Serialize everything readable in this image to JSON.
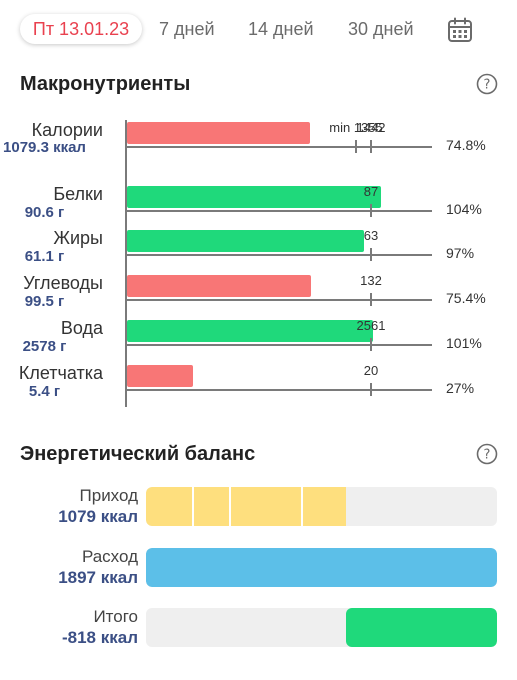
{
  "tabs": [
    {
      "label": "Пт 13.01.23",
      "active": true
    },
    {
      "label": "7 дней",
      "active": false
    },
    {
      "label": "14 дней",
      "active": false
    },
    {
      "label": "30 дней",
      "active": false
    }
  ],
  "icons": {
    "calendar": "calendar-icon",
    "help": "question-circle-icon"
  },
  "colors": {
    "accent": "#e9414f",
    "value_text": "#3b4f85",
    "bar_low": "#f87676",
    "bar_ok": "#1fd97b",
    "intake": "#fedf7e",
    "expense": "#5cbfe8",
    "total": "#1fd97b"
  },
  "macro": {
    "title": "Макронутриенты",
    "rows": [
      {
        "name": "Калории",
        "value": "1079.3 ккал",
        "percent": "74.8%",
        "status": "low",
        "actual": 1079.3,
        "target": 1442,
        "min": 1355,
        "min_label": "min 1355",
        "target_label": "1442"
      },
      {
        "name": "Белки",
        "value": "90.6 г",
        "percent": "104%",
        "status": "ok",
        "actual": 90.6,
        "target": 87,
        "target_label": "87"
      },
      {
        "name": "Жиры",
        "value": "61.1 г",
        "percent": "97%",
        "status": "ok",
        "actual": 61.1,
        "target": 63,
        "target_label": "63"
      },
      {
        "name": "Углеводы",
        "value": "99.5 г",
        "percent": "75.4%",
        "status": "low",
        "actual": 99.5,
        "target": 132,
        "target_label": "132"
      },
      {
        "name": "Вода",
        "value": "2578 г",
        "percent": "101%",
        "status": "ok",
        "actual": 2578,
        "target": 2561,
        "target_label": "2561"
      },
      {
        "name": "Клетчатка",
        "value": "5.4 г",
        "percent": "27%",
        "status": "low",
        "actual": 5.4,
        "target": 20,
        "target_label": "20"
      }
    ]
  },
  "energy": {
    "title": "Энергетический баланс",
    "rows": [
      {
        "label": "Приход",
        "value": "1079 ккал",
        "kcal": 1079,
        "kind": "intake"
      },
      {
        "label": "Расход",
        "value": "1897 ккал",
        "kcal": 1897,
        "kind": "expense"
      },
      {
        "label": "Итого",
        "value": "-818 ккал",
        "kcal": -818,
        "kind": "total"
      }
    ]
  }
}
